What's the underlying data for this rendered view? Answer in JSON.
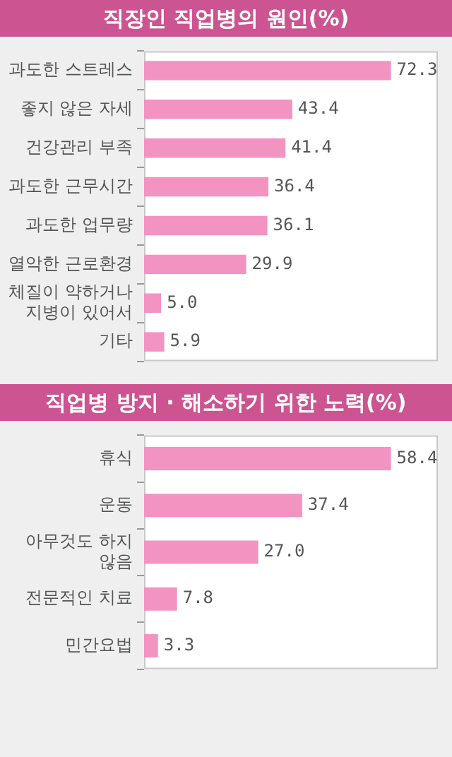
{
  "chart_data": [
    {
      "type": "bar",
      "orientation": "horizontal",
      "title": "직장인 직업병의 원인(%)",
      "categories": [
        "과도한 스트레스",
        "좋지 않은 자세",
        "건강관리 부족",
        "과도한 근무시간",
        "과도한 업무량",
        "열악한 근로환경",
        "체질이 약하거나 지병이 있어서",
        "기타"
      ],
      "values": [
        72.3,
        43.4,
        41.4,
        36.4,
        36.1,
        29.9,
        5.0,
        5.9
      ],
      "value_labels": [
        "72.3",
        "43.4",
        "41.4",
        "36.4",
        "36.1",
        "29.9",
        "5.0",
        "5.9"
      ],
      "color": "#f393c2",
      "legend": false
    },
    {
      "type": "bar",
      "orientation": "horizontal",
      "title": "직업병 방지 · 해소하기 위한 노력(%)",
      "categories": [
        "휴식",
        "운동",
        "아무것도 하지 않음",
        "전문적인 치료",
        "민간요법"
      ],
      "values": [
        58.4,
        37.4,
        27.0,
        7.8,
        3.3
      ],
      "value_labels": [
        "58.4",
        "37.4",
        "27.0",
        "7.8",
        "3.3"
      ],
      "color": "#f393c2",
      "legend": false
    }
  ]
}
